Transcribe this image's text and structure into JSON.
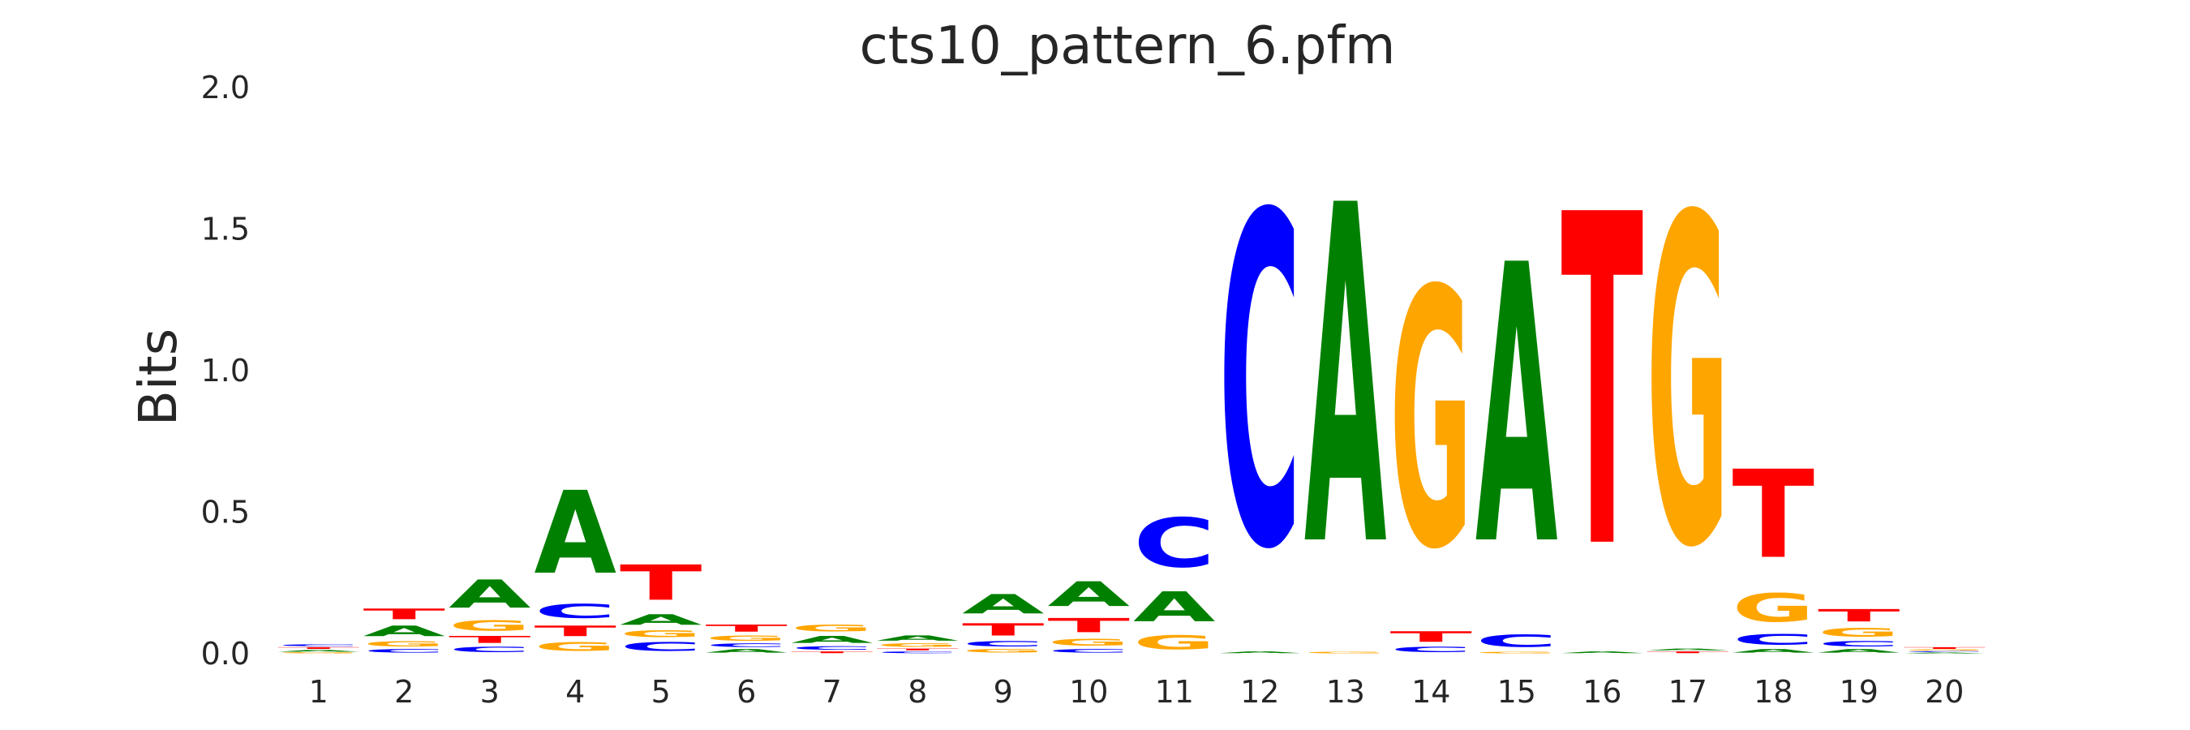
{
  "chart_data": {
    "type": "sequence-logo",
    "title": "cts10_pattern_6.pfm",
    "xlabel": "",
    "ylabel": "Bits",
    "ylim": [
      0,
      2.0
    ],
    "yticks": [
      "0.0",
      "0.5",
      "1.0",
      "1.5",
      "2.0"
    ],
    "ytick_values": [
      0,
      0.5,
      1.0,
      1.5,
      2.0
    ],
    "positions": [
      "1",
      "2",
      "3",
      "4",
      "5",
      "6",
      "7",
      "8",
      "9",
      "10",
      "11",
      "12",
      "13",
      "14",
      "15",
      "16",
      "17",
      "18",
      "19",
      "20"
    ],
    "colors": {
      "A": "#008000",
      "C": "#0000ff",
      "G": "#ffa500",
      "T": "#ff0000"
    },
    "grid": false,
    "stacks": [
      [
        {
          "base": "G",
          "bits": 0.005
        },
        {
          "base": "A",
          "bits": 0.01
        },
        {
          "base": "T",
          "bits": 0.01
        },
        {
          "base": "C",
          "bits": 0.01
        }
      ],
      [
        {
          "base": "C",
          "bits": 0.02
        },
        {
          "base": "G",
          "bits": 0.03
        },
        {
          "base": "A",
          "bits": 0.06
        },
        {
          "base": "T",
          "bits": 0.06
        }
      ],
      [
        {
          "base": "C",
          "bits": 0.03
        },
        {
          "base": "T",
          "bits": 0.04
        },
        {
          "base": "G",
          "bits": 0.06
        },
        {
          "base": "A",
          "bits": 0.16
        }
      ],
      [
        {
          "base": "G",
          "bits": 0.05
        },
        {
          "base": "T",
          "bits": 0.06
        },
        {
          "base": "C",
          "bits": 0.08
        },
        {
          "base": "A",
          "bits": 0.47
        }
      ],
      [
        {
          "base": "C",
          "bits": 0.05
        },
        {
          "base": "G",
          "bits": 0.04
        },
        {
          "base": "A",
          "bits": 0.06
        },
        {
          "base": "T",
          "bits": 0.2
        }
      ],
      [
        {
          "base": "A",
          "bits": 0.02
        },
        {
          "base": "C",
          "bits": 0.02
        },
        {
          "base": "G",
          "bits": 0.03
        },
        {
          "base": "T",
          "bits": 0.04
        }
      ],
      [
        {
          "base": "T",
          "bits": 0.01
        },
        {
          "base": "C",
          "bits": 0.02
        },
        {
          "base": "A",
          "bits": 0.04
        },
        {
          "base": "G",
          "bits": 0.04
        }
      ],
      [
        {
          "base": "C",
          "bits": 0.01
        },
        {
          "base": "T",
          "bits": 0.01
        },
        {
          "base": "G",
          "bits": 0.02
        },
        {
          "base": "A",
          "bits": 0.03
        }
      ],
      [
        {
          "base": "G",
          "bits": 0.02
        },
        {
          "base": "C",
          "bits": 0.03
        },
        {
          "base": "T",
          "bits": 0.07
        },
        {
          "base": "A",
          "bits": 0.11
        }
      ],
      [
        {
          "base": "C",
          "bits": 0.02
        },
        {
          "base": "G",
          "bits": 0.04
        },
        {
          "base": "T",
          "bits": 0.08
        },
        {
          "base": "A",
          "bits": 0.14
        }
      ],
      [
        {
          "base": "G",
          "bits": 0.08
        },
        {
          "base": "A",
          "bits": 0.17
        },
        {
          "base": "C",
          "bits": 0.28
        }
      ],
      [
        {
          "base": "A",
          "bits": 0.01
        },
        {
          "base": "C",
          "bits": 1.88
        }
      ],
      [
        {
          "base": "G",
          "bits": 0.01
        },
        {
          "base": "A",
          "bits": 1.92
        }
      ],
      [
        {
          "base": "C",
          "bits": 0.03
        },
        {
          "base": "T",
          "bits": 0.06
        },
        {
          "base": "G",
          "bits": 1.46
        }
      ],
      [
        {
          "base": "G",
          "bits": 0.01
        },
        {
          "base": "C",
          "bits": 0.07
        },
        {
          "base": "A",
          "bits": 1.58
        }
      ],
      [
        {
          "base": "A",
          "bits": 0.01
        },
        {
          "base": "T",
          "bits": 1.88
        }
      ],
      [
        {
          "base": "T",
          "bits": 0.01
        },
        {
          "base": "A",
          "bits": 0.01
        },
        {
          "base": "G",
          "bits": 1.86
        }
      ],
      [
        {
          "base": "A",
          "bits": 0.02
        },
        {
          "base": "C",
          "bits": 0.06
        },
        {
          "base": "G",
          "bits": 0.16
        },
        {
          "base": "T",
          "bits": 0.5
        }
      ],
      [
        {
          "base": "A",
          "bits": 0.02
        },
        {
          "base": "C",
          "bits": 0.03
        },
        {
          "base": "G",
          "bits": 0.05
        },
        {
          "base": "T",
          "bits": 0.07
        }
      ],
      [
        {
          "base": "A",
          "bits": 0.005
        },
        {
          "base": "C",
          "bits": 0.005
        },
        {
          "base": "G",
          "bits": 0.005
        },
        {
          "base": "T",
          "bits": 0.01
        }
      ]
    ]
  }
}
